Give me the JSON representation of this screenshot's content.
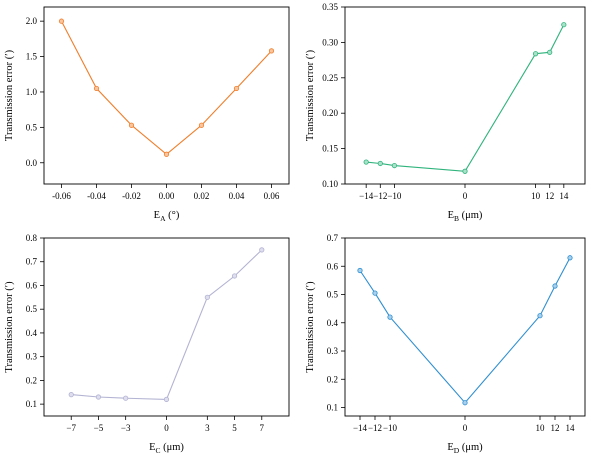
{
  "chart_data": [
    {
      "type": "line",
      "xlabel": "E",
      "xlabel_sub": "A",
      "xlabel_unit": " (°)",
      "ylabel": "Transmission error (′)",
      "xlim": [
        -0.07,
        0.07
      ],
      "ylim": [
        -0.3,
        2.2
      ],
      "xticks": [
        -0.06,
        -0.04,
        -0.02,
        0.0,
        0.02,
        0.04,
        0.06
      ],
      "xtick_labels": [
        "-0.06",
        "-0.04",
        "-0.02",
        "0.00",
        "0.02",
        "0.04",
        "0.06"
      ],
      "yticks": [
        0.0,
        0.5,
        1.0,
        1.5,
        2.0
      ],
      "ytick_labels": [
        "0.0",
        "0.5",
        "1.0",
        "1.5",
        "2.0"
      ],
      "color": "#f07e2b",
      "marker_fill": "#f9c59e",
      "series": [
        {
          "x": [
            -0.06,
            -0.04,
            -0.02,
            0.0,
            0.02,
            0.04,
            0.06
          ],
          "values": [
            2.0,
            1.05,
            0.53,
            0.12,
            0.53,
            1.05,
            1.58
          ]
        }
      ]
    },
    {
      "type": "line",
      "xlabel": "E",
      "xlabel_sub": "B",
      "xlabel_unit": " (μm)",
      "ylabel": "Transmission error (′)",
      "xlim": [
        -17,
        17
      ],
      "ylim": [
        0.1,
        0.35
      ],
      "xticks": [
        -14,
        -12,
        -10,
        0,
        10,
        12,
        14
      ],
      "xtick_labels": [
        "−14",
        "−12",
        "−10",
        "0",
        "10",
        "12",
        "14"
      ],
      "yticks": [
        0.1,
        0.15,
        0.2,
        0.25,
        0.3,
        0.35
      ],
      "ytick_labels": [
        "0.10",
        "0.15",
        "0.20",
        "0.25",
        "0.30",
        "0.35"
      ],
      "color": "#2fb37c",
      "marker_fill": "#a8e2c8",
      "series": [
        {
          "x": [
            -14,
            -12,
            -10,
            0,
            10,
            12,
            14
          ],
          "values": [
            0.131,
            0.129,
            0.126,
            0.118,
            0.284,
            0.286,
            0.325
          ]
        }
      ]
    },
    {
      "type": "line",
      "xlabel": "E",
      "xlabel_sub": "C",
      "xlabel_unit": " (μm)",
      "ylabel": "Transmission error (′)",
      "xlim": [
        -9,
        9
      ],
      "ylim": [
        0.05,
        0.8
      ],
      "xticks": [
        -7,
        -5,
        -3,
        0,
        3,
        5,
        7
      ],
      "xtick_labels": [
        "−7",
        "−5",
        "−3",
        "0",
        "3",
        "5",
        "7"
      ],
      "yticks": [
        0.1,
        0.2,
        0.3,
        0.4,
        0.5,
        0.6,
        0.7,
        0.8
      ],
      "ytick_labels": [
        "0.1",
        "0.2",
        "0.3",
        "0.4",
        "0.5",
        "0.6",
        "0.7",
        "0.8"
      ],
      "color": "#b3b3d3",
      "marker_fill": "#dedeef",
      "series": [
        {
          "x": [
            -7,
            -5,
            -3,
            0,
            3,
            5,
            7
          ],
          "values": [
            0.14,
            0.13,
            0.125,
            0.12,
            0.55,
            0.64,
            0.75
          ]
        }
      ]
    },
    {
      "type": "line",
      "xlabel": "E",
      "xlabel_sub": "D",
      "xlabel_unit": " (μm)",
      "ylabel": "Transmission error (′)",
      "xlim": [
        -16,
        16
      ],
      "ylim": [
        0.07,
        0.7
      ],
      "xticks": [
        -14,
        -12,
        -10,
        0,
        10,
        12,
        14
      ],
      "xtick_labels": [
        "−14",
        "−12",
        "−10",
        "0",
        "10",
        "12",
        "14"
      ],
      "yticks": [
        0.1,
        0.2,
        0.3,
        0.4,
        0.5,
        0.6,
        0.7
      ],
      "ytick_labels": [
        "0.1",
        "0.2",
        "0.3",
        "0.4",
        "0.5",
        "0.6",
        "0.7"
      ],
      "color": "#2f8fd1",
      "marker_fill": "#a6d0ee",
      "series": [
        {
          "x": [
            -14,
            -12,
            -10,
            0,
            10,
            12,
            14
          ],
          "values": [
            0.585,
            0.505,
            0.42,
            0.117,
            0.425,
            0.53,
            0.63
          ]
        }
      ]
    }
  ]
}
